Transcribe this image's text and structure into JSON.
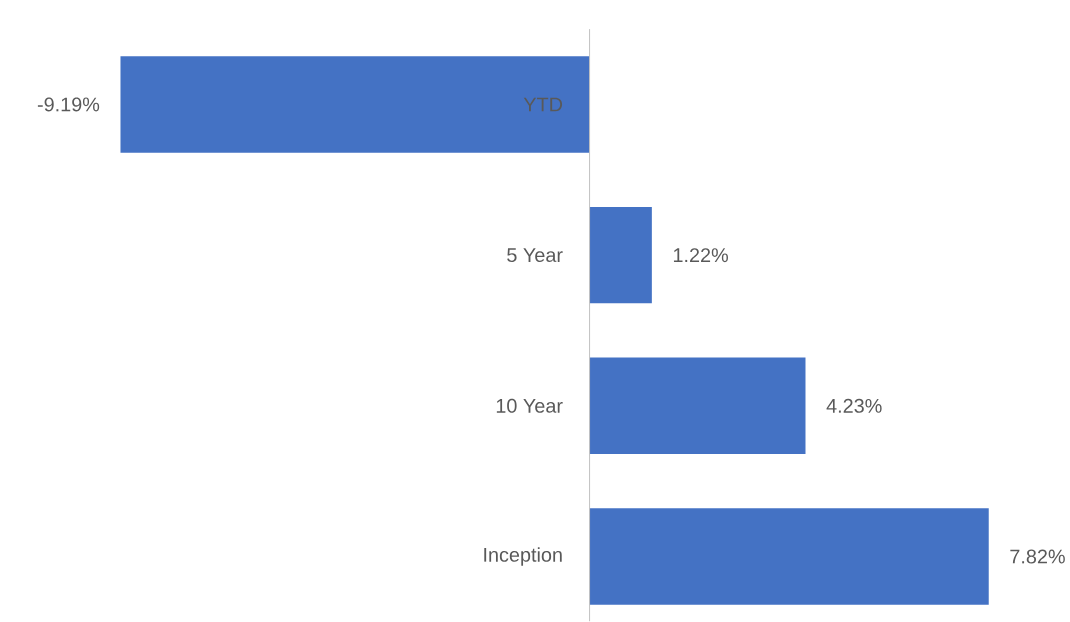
{
  "chart_data": {
    "type": "bar",
    "orientation": "horizontal",
    "categories": [
      "YTD",
      "5 Year",
      "10 Year",
      "Inception"
    ],
    "values": [
      -9.19,
      1.22,
      4.23,
      7.82
    ],
    "color": "#4472c4",
    "value_labels": [
      "-9.19%",
      "1.22%",
      "4.23%",
      "7.82%"
    ]
  }
}
